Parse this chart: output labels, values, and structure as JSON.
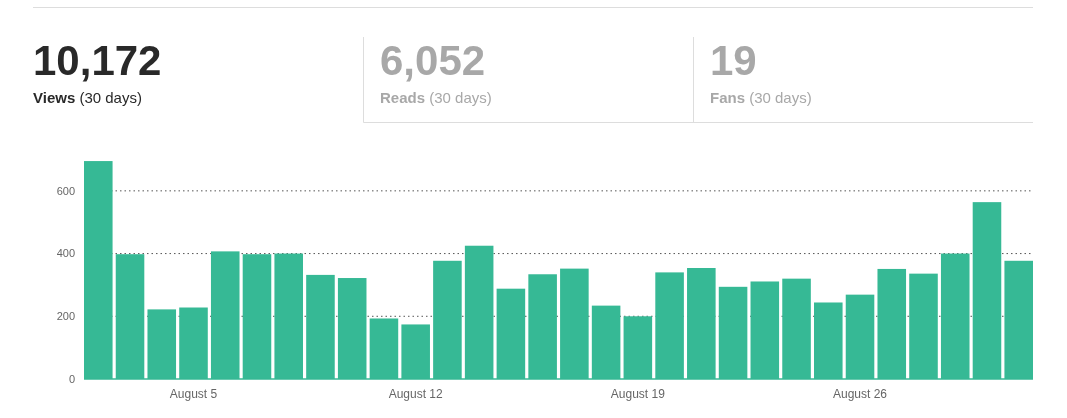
{
  "chart_data": [
    {
      "type": "other",
      "title": "10,172",
      "subtitle": "Views",
      "annotations": [
        "(30 days)"
      ],
      "color": "#292929"
    },
    {
      "type": "other",
      "title": "6,052",
      "subtitle": "Reads",
      "annotations": [
        "(30 days)"
      ],
      "color": "#a8a8a8"
    },
    {
      "type": "other",
      "title": "19",
      "subtitle": "Fans",
      "annotations": [
        "(30 days)"
      ],
      "color": "#a8a8a8"
    },
    {
      "type": "bar",
      "categories": [
        null,
        null,
        null,
        "August 5",
        null,
        null,
        null,
        null,
        null,
        null,
        "August 12",
        null,
        null,
        null,
        null,
        null,
        null,
        "August 19",
        null,
        null,
        null,
        null,
        null,
        null,
        "August 26",
        null,
        null,
        null,
        null,
        null
      ],
      "values": [
        695,
        398,
        222,
        228,
        407,
        398,
        400,
        332,
        322,
        193,
        174,
        377,
        425,
        288,
        334,
        352,
        234,
        200,
        340,
        354,
        294,
        311,
        320,
        244,
        269,
        351,
        336,
        400,
        564,
        377
      ],
      "color": "#36b995",
      "ylim": [
        0,
        700
      ],
      "yticks": [
        0,
        200,
        400,
        600
      ],
      "grid": "y"
    }
  ]
}
